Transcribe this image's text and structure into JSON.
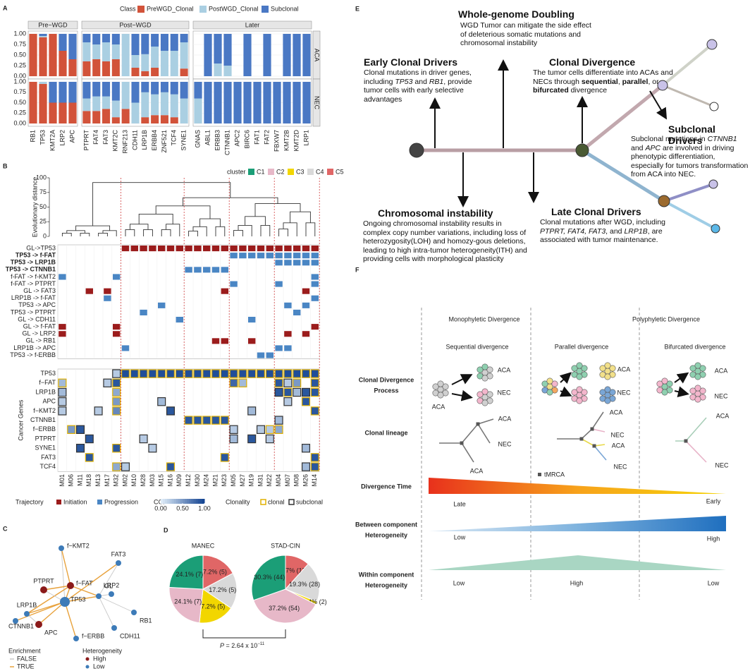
{
  "panel_labels": [
    "A",
    "B",
    "C",
    "D",
    "E",
    "F"
  ],
  "panel_a": {
    "type": "bar",
    "legend_title": "Class",
    "classes": [
      {
        "name": "PreWGD_Clonal",
        "color": "#d2533a"
      },
      {
        "name": "PostWGD_Clonal",
        "color": "#aacfe2"
      },
      {
        "name": "Subclonal",
        "color": "#4a78c4"
      }
    ],
    "groups": [
      {
        "name": "Pre−WGD",
        "genes": [
          "RB1",
          "TP53",
          "KMT2A",
          "LRP2",
          "APC"
        ]
      },
      {
        "name": "Post−WGD",
        "genes": [
          "PTPRT",
          "FAT4",
          "FAT3",
          "KMT2C",
          "RNF213",
          "CDH11",
          "LRP1B",
          "ERBB4",
          "ZNF521",
          "TCF4",
          "SYNE1"
        ]
      },
      {
        "name": "Later",
        "genes": [
          "GNAS",
          "ABL1",
          "ERBB3",
          "CTNNB1",
          "APC2",
          "BIRC6",
          "FAT1",
          "FAT2",
          "FBXW7",
          "KMT2B",
          "KMT2D",
          "LRP1"
        ]
      }
    ],
    "ylim": [
      0,
      1
    ],
    "yticks": [
      {
        "value": 0,
        "label": "0.00"
      },
      {
        "value": 0.25,
        "label": "0.25"
      },
      {
        "value": 0.5,
        "label": "0.50"
      },
      {
        "value": 0.75,
        "label": "0.75"
      },
      {
        "value": 1,
        "label": "1.00"
      }
    ],
    "facets": [
      {
        "name": "ACA",
        "values": [
          [
            1,
            0.92,
            1,
            0.6,
            0.4,
            0.35,
            0.4,
            0.35,
            0.4,
            0,
            0.2,
            0.12,
            0.2,
            0,
            0,
            0.18,
            0,
            0,
            0,
            0,
            0,
            0,
            0,
            0,
            0,
            0,
            0,
            0
          ],
          [
            0,
            0.03,
            0,
            0,
            0,
            0.45,
            0.35,
            0.45,
            0.35,
            1,
            0.3,
            0.4,
            0.5,
            0.6,
            0.6,
            0.62,
            0,
            0,
            0.3,
            0.25,
            0,
            0,
            0,
            0,
            0,
            0,
            0,
            0
          ],
          [
            0,
            0.05,
            0,
            0.4,
            0.6,
            0.2,
            0.25,
            0.2,
            0.25,
            0,
            0.5,
            0.48,
            0.3,
            0.4,
            0.4,
            0.2,
            0,
            1,
            0.7,
            0.75,
            0,
            1,
            0,
            1,
            0,
            1,
            1,
            1
          ]
        ]
      },
      {
        "name": "NEC",
        "values": [
          [
            1,
            0.95,
            0.5,
            0.5,
            0.5,
            0.3,
            0.3,
            0.35,
            0.15,
            0.35,
            0,
            0.15,
            0.2,
            0.2,
            0.15,
            0,
            0,
            0,
            0,
            0,
            0,
            0,
            0,
            0,
            0,
            0,
            0,
            0
          ],
          [
            0,
            0.05,
            0,
            0,
            0,
            0.3,
            0.35,
            0.3,
            0.4,
            0.65,
            0.5,
            0.6,
            0.5,
            0.55,
            0.55,
            0.6,
            0.6,
            0,
            0,
            0,
            0,
            0,
            0,
            0,
            0,
            0,
            0,
            0
          ],
          [
            0,
            0,
            0.5,
            0.5,
            0.5,
            0.4,
            0.35,
            0.35,
            0.45,
            0,
            0.5,
            0.25,
            0.3,
            0.25,
            0.3,
            0.4,
            0.4,
            1,
            1,
            1,
            1,
            1,
            1,
            1,
            1,
            1,
            1,
            1
          ]
        ]
      }
    ]
  },
  "panel_b": {
    "y_label": "Evolutionary distance",
    "ylim": [
      0,
      100
    ],
    "yticks": [
      0,
      25,
      50,
      75,
      100
    ],
    "cluster_title": "cluster",
    "clusters": [
      {
        "name": "C1",
        "color": "#1b9e77",
        "samples": [
          "M01",
          "M06",
          "M11",
          "M18",
          "M13",
          "M17",
          "M32"
        ]
      },
      {
        "name": "C2",
        "color": "#e7b8c8",
        "samples": [
          "M02",
          "M10",
          "M28",
          "M03",
          "M15",
          "M16",
          "M09"
        ]
      },
      {
        "name": "C3",
        "color": "#f2d600",
        "samples": [
          "M12",
          "M30",
          "M24",
          "M21",
          "M23"
        ]
      },
      {
        "name": "C4",
        "color": "#d9d9d9",
        "samples": [
          "M05",
          "M27",
          "M19",
          "M31",
          "M22"
        ]
      },
      {
        "name": "C5",
        "color": "#e06666",
        "samples": [
          "M04",
          "M07",
          "M08",
          "M26",
          "M14"
        ]
      }
    ],
    "trajectory_rows": [
      "GL->TP53",
      "TP53 -> f-FAT",
      "TP53 -> LRP1B",
      "TP53 -> CTNNB1",
      "f-FAT -> f-KMT2",
      "f-FAT -> PTPRT",
      "GL -> FAT3",
      "LRP1B -> f-FAT",
      "TP53 -> APC",
      "TP53 -> PTPRT",
      "GL -> CDH11",
      "GL -> f-FAT",
      "GL -> LRP2",
      "GL -> RB1",
      "LRP1B -> APC",
      "TP53 -> f-ERBB"
    ],
    "gene_axis_label": "Cancer Genes",
    "gene_rows": [
      "TP53",
      "f−FAT",
      "LRP1B",
      "APC",
      "f−KMT2",
      "CTNNB1",
      "f−ERBB",
      "PTPRT",
      "SYNE1",
      "FAT3",
      "TCF4"
    ],
    "trajectory_title": "Trajectory",
    "trajectory_kinds": [
      {
        "name": "Initiation",
        "color": "#9b1c1c"
      },
      {
        "name": "Progression",
        "color": "#4a86c4"
      }
    ],
    "ccf_title": "CCF",
    "ccf_lim": [
      0,
      1
    ],
    "ccf_ticks": [
      {
        "value": 0,
        "label": "0.00"
      },
      {
        "value": 0.5,
        "label": "0.50"
      },
      {
        "value": 1,
        "label": "1.00"
      }
    ],
    "clonality_title": "Clonality",
    "clonality": [
      {
        "name": "clonal",
        "color": "#e0b000"
      },
      {
        "name": "subclonal",
        "color": "#333333"
      }
    ]
  },
  "panel_c": {
    "nodes": [
      "f−KMT2",
      "FAT3",
      "PTPRT",
      "f−FAT",
      "LRP2",
      "LRP1B",
      "GL",
      "TP53",
      "RB1",
      "CTNNB1",
      "CDH11",
      "APC",
      "f−ERBB"
    ],
    "enrichment_title": "Enrichment",
    "enrichment": [
      "FALSE",
      "TRUE"
    ],
    "heterogeneity_title": "Heterogeneity",
    "heterogeneity": [
      "High",
      "Low"
    ]
  },
  "chart_data": [
    {
      "type": "pie",
      "title": "MANEC",
      "values": [
        24.1,
        24.1,
        17.2,
        17.2,
        17.2
      ],
      "value_labels": [
        "24.1% (7)",
        "24.1% (7)",
        "17.2% (5)",
        "17.2% (5)",
        "17.2% (5)"
      ],
      "colors": [
        "#1b9e77",
        "#e7b8c8",
        "#f2d600",
        "#d9d9d9",
        "#e06666"
      ]
    },
    {
      "type": "pie",
      "title": "STAD-CIN",
      "values": [
        30.3,
        37.2,
        1.4,
        19.3,
        11.7
      ],
      "value_labels": [
        "30.3% (44)",
        "37.2% (54)",
        "1.4% (2)",
        "19.3% (28)",
        "11.7% (17)"
      ],
      "colors": [
        "#1b9e77",
        "#e7b8c8",
        "#f2d600",
        "#d9d9d9",
        "#e06666"
      ]
    }
  ],
  "panel_d": {
    "p_symbol": "P",
    "p_text": " = 2.64 x 10",
    "p_exponent": "−11"
  },
  "panel_e": {
    "wgd": {
      "title": "Whole-genome Doubling",
      "body": [
        "WGD Tumor can mitigate the side effect of deleterious somatic mutations and chromosomal instability"
      ]
    },
    "early": {
      "title": "Early Clonal Drivers",
      "body": [
        "Clonal mutations in driver genes, including ",
        "TP53",
        " and ",
        "RB1",
        ", provide tumor cells with early selective advantages"
      ]
    },
    "divergence": {
      "title": "Clonal Divergence",
      "body": [
        "The tumor cells differentiate into ACAs and NECs through ",
        "sequential",
        ", ",
        "parallel",
        ", or ",
        "bifurcated",
        " divergence"
      ]
    },
    "subclonal": {
      "title": "Subclonal Drivers",
      "body": [
        "Subclonal mutations in ",
        "CTNNB1",
        " and ",
        "APC",
        " are involved in driving phenotypic differentiation, especially for tumors transformation from ACA into NEC."
      ]
    },
    "cin": {
      "title": "Chromosomal instability",
      "body": [
        "Ongoing chromosomal instability results in complex copy number variations, including loss of heterozygosity(LOH)  and homozy-gous deletions, leading to high intra-tumor heterogeneity(ITH) and providing cells with morphological plasticity"
      ]
    },
    "late": {
      "title": "Late Clonal Drivers",
      "body": [
        "Clonal mutations after WGD, including ",
        "PTPRT, FAT4, FAT3",
        ", and ",
        "LRP1B",
        ", are associated with tumor maintenance."
      ]
    }
  },
  "panel_f": {
    "headers": [
      "Monophyletic Divergence",
      "Polyphyletic Divergence"
    ],
    "columns": [
      "Sequential divergence",
      "Parallel divergence",
      "Bifurcated divergence"
    ],
    "rows": [
      "Clonal Divergence Process",
      "Clonal lineage",
      "Divergence Time",
      "Between component Heterogeneity",
      "Within component Heterogeneity"
    ],
    "process_labels": [
      "ACA",
      "NEC",
      "ACA",
      "ACA",
      "NEC",
      "ACA",
      "NEC"
    ],
    "lineage_labels": [
      "ACA",
      "NEC",
      "ACA",
      "ACA",
      "NEC",
      "ACA",
      "NEC",
      "ACA",
      "NEC"
    ],
    "tmrca": "tMRCA",
    "time_labels": [
      "Late",
      "Early"
    ],
    "between_labels": [
      "Low",
      "High"
    ],
    "within_labels": [
      "Low",
      "High",
      "Low"
    ]
  }
}
